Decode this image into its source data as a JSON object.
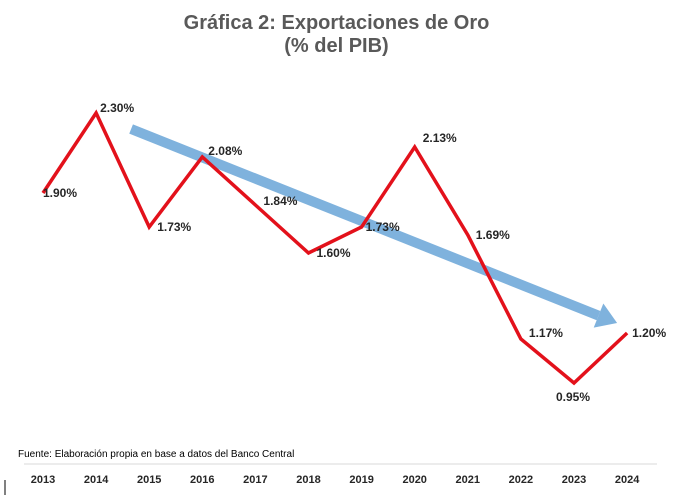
{
  "chart_data": {
    "type": "line",
    "title": "Gráfica 2: Exportaciones de Oro",
    "subtitle": "(% del PIB)",
    "categories": [
      "2013",
      "2014",
      "2015",
      "2016",
      "2017",
      "2018",
      "2019",
      "2020",
      "2021",
      "2022",
      "2023",
      "2024"
    ],
    "series": [
      {
        "values": [
          1.9,
          2.3,
          1.73,
          2.08,
          1.84,
          1.6,
          1.73,
          2.13,
          1.69,
          1.17,
          0.95,
          1.2
        ],
        "labels": [
          "1.90%",
          "2.30%",
          "1.73%",
          "2.08%",
          "1.84%",
          "1.60%",
          "1.73%",
          "2.13%",
          "1.69%",
          "1.17%",
          "0.95%",
          "1.20%"
        ],
        "color": "#e3111b"
      }
    ],
    "trend_arrow": {
      "color": "#7fb2dd",
      "from": {
        "x": "2014",
        "y": 2.23
      },
      "to": {
        "x": "2024",
        "y": 1.23
      }
    },
    "ylim": [
      0.5,
      2.5
    ],
    "grid": false,
    "source": "Fuente: Elaboración propia en base a datos del Banco Central"
  }
}
